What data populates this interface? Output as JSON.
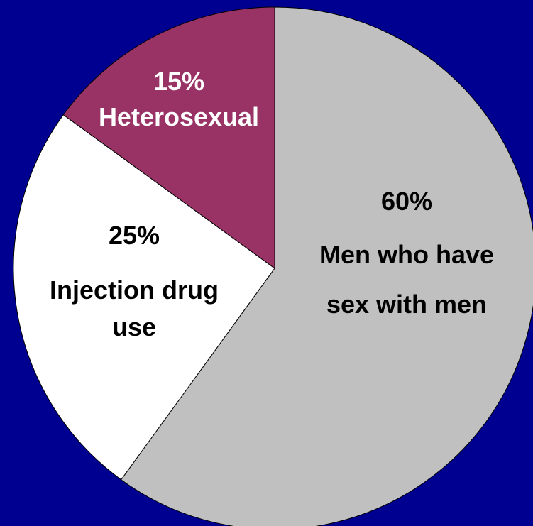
{
  "colors": {
    "background": "#000090",
    "slice_stroke": "#000000"
  },
  "chart_data": {
    "type": "pie",
    "title": "",
    "start_angle_deg": 0,
    "direction": "clockwise",
    "slices": [
      {
        "label_lines": [
          "Men who have",
          "sex with men"
        ],
        "percent_label": "60%",
        "value": 60,
        "color": "#c0c0c0",
        "text_color": "#000000"
      },
      {
        "label_lines": [
          "Injection drug",
          "use"
        ],
        "percent_label": "25%",
        "value": 25,
        "color": "#ffffff",
        "text_color": "#000000"
      },
      {
        "label_lines": [
          "Heterosexual"
        ],
        "percent_label": "15%",
        "value": 15,
        "color": "#993366",
        "text_color": "#ffffff"
      }
    ]
  }
}
